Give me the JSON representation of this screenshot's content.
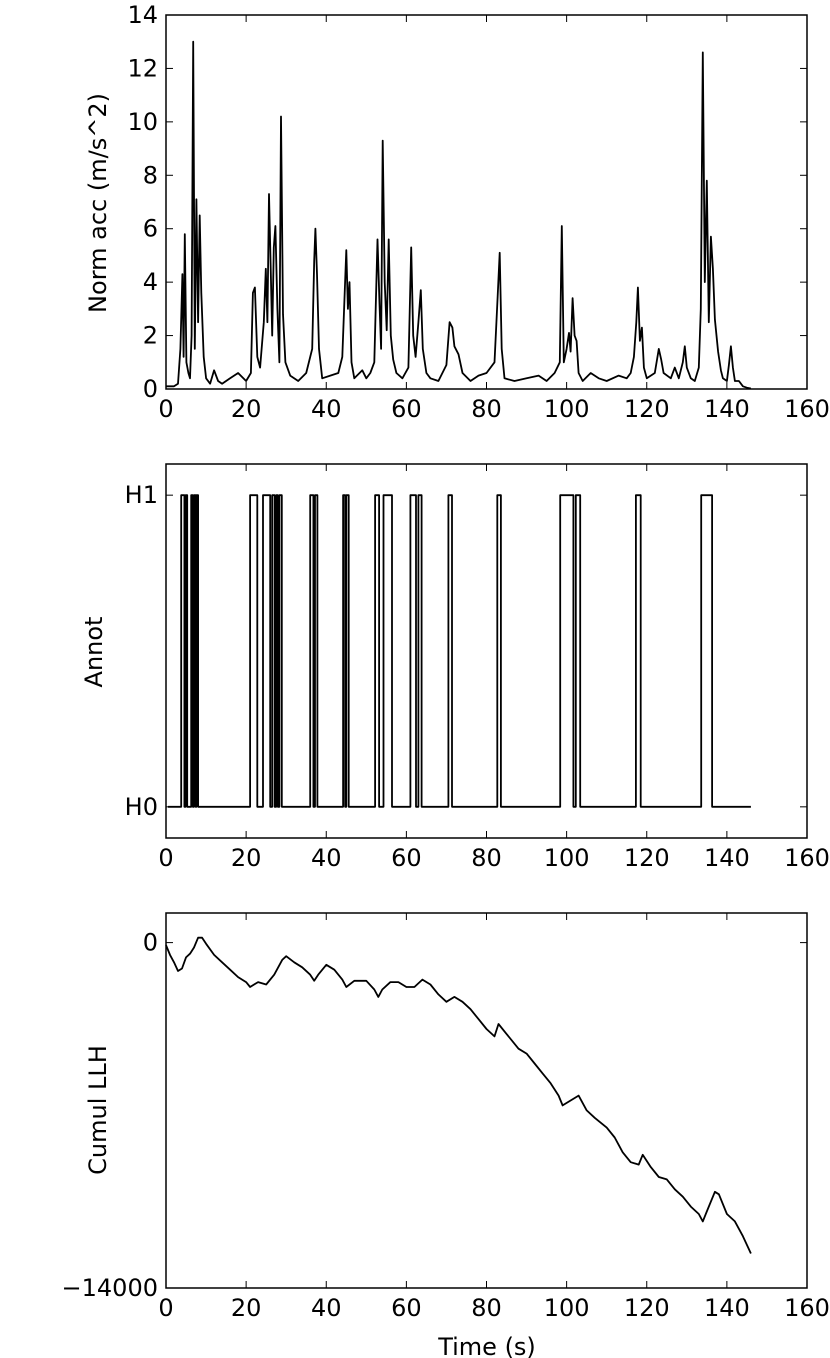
{
  "chart_data": [
    {
      "type": "line",
      "ylabel": "Norm acc (m/s^2)",
      "xlabel": "",
      "xlim": [
        0,
        160
      ],
      "ylim": [
        0,
        14
      ],
      "xticks": [
        0,
        20,
        40,
        60,
        80,
        100,
        120,
        140,
        160
      ],
      "yticks": [
        0,
        2,
        4,
        6,
        8,
        10,
        12,
        14
      ],
      "ytick_labels": [
        "0",
        "2",
        "4",
        "6",
        "8",
        "10",
        "12",
        "14"
      ],
      "color": "#000000",
      "series": [
        {
          "points": [
            [
              0,
              0.1
            ],
            [
              2,
              0.1
            ],
            [
              3,
              0.2
            ],
            [
              3.6,
              1.5
            ],
            [
              4.1,
              4.3
            ],
            [
              4.4,
              1.2
            ],
            [
              4.7,
              5.8
            ],
            [
              5.1,
              1.0
            ],
            [
              5.6,
              0.6
            ],
            [
              6.0,
              0.4
            ],
            [
              6.4,
              2.0
            ],
            [
              6.8,
              13.0
            ],
            [
              7.2,
              1.5
            ],
            [
              7.6,
              7.1
            ],
            [
              8.0,
              2.5
            ],
            [
              8.4,
              6.5
            ],
            [
              8.8,
              3.6
            ],
            [
              9.4,
              1.2
            ],
            [
              10,
              0.4
            ],
            [
              11,
              0.2
            ],
            [
              12,
              0.7
            ],
            [
              13,
              0.3
            ],
            [
              14,
              0.2
            ],
            [
              16,
              0.4
            ],
            [
              18,
              0.6
            ],
            [
              20,
              0.3
            ],
            [
              21.2,
              0.6
            ],
            [
              21.7,
              3.6
            ],
            [
              22.2,
              3.8
            ],
            [
              22.8,
              1.2
            ],
            [
              23.5,
              0.8
            ],
            [
              24.4,
              2.5
            ],
            [
              24.9,
              4.5
            ],
            [
              25.3,
              2.5
            ],
            [
              25.7,
              7.3
            ],
            [
              26.1,
              4.7
            ],
            [
              26.5,
              2.0
            ],
            [
              26.9,
              5.3
            ],
            [
              27.3,
              6.1
            ],
            [
              27.8,
              3.0
            ],
            [
              28.3,
              1.0
            ],
            [
              28.7,
              10.2
            ],
            [
              29.2,
              2.8
            ],
            [
              29.8,
              1.0
            ],
            [
              31,
              0.5
            ],
            [
              33,
              0.3
            ],
            [
              35,
              0.6
            ],
            [
              36.5,
              1.5
            ],
            [
              37.0,
              4.8
            ],
            [
              37.3,
              6.0
            ],
            [
              37.7,
              4.3
            ],
            [
              38.2,
              1.5
            ],
            [
              39,
              0.4
            ],
            [
              41,
              0.5
            ],
            [
              43,
              0.6
            ],
            [
              44,
              1.2
            ],
            [
              44.6,
              3.6
            ],
            [
              45.0,
              5.2
            ],
            [
              45.4,
              3.0
            ],
            [
              45.8,
              4.0
            ],
            [
              46.3,
              1.0
            ],
            [
              47,
              0.4
            ],
            [
              49,
              0.7
            ],
            [
              50,
              0.4
            ],
            [
              51,
              0.6
            ],
            [
              52,
              1.0
            ],
            [
              52.8,
              5.6
            ],
            [
              53.3,
              3.2
            ],
            [
              53.7,
              1.5
            ],
            [
              54.1,
              9.3
            ],
            [
              54.6,
              4.0
            ],
            [
              55.1,
              2.2
            ],
            [
              55.6,
              5.6
            ],
            [
              56.1,
              2.0
            ],
            [
              56.7,
              1.1
            ],
            [
              57.5,
              0.6
            ],
            [
              59,
              0.4
            ],
            [
              60.5,
              0.8
            ],
            [
              61.2,
              5.3
            ],
            [
              61.7,
              2.0
            ],
            [
              62.3,
              1.2
            ],
            [
              63.0,
              2.5
            ],
            [
              63.6,
              3.7
            ],
            [
              64.1,
              1.5
            ],
            [
              65,
              0.6
            ],
            [
              66,
              0.4
            ],
            [
              68,
              0.3
            ],
            [
              70,
              0.9
            ],
            [
              70.8,
              2.5
            ],
            [
              71.5,
              2.3
            ],
            [
              72,
              1.6
            ],
            [
              73,
              1.3
            ],
            [
              74,
              0.6
            ],
            [
              76,
              0.3
            ],
            [
              78,
              0.5
            ],
            [
              80,
              0.6
            ],
            [
              82,
              1.0
            ],
            [
              82.8,
              3.5
            ],
            [
              83.3,
              5.1
            ],
            [
              83.8,
              1.5
            ],
            [
              84.5,
              0.4
            ],
            [
              87,
              0.3
            ],
            [
              90,
              0.4
            ],
            [
              93,
              0.5
            ],
            [
              95,
              0.3
            ],
            [
              97,
              0.6
            ],
            [
              98.3,
              1.0
            ],
            [
              98.8,
              6.1
            ],
            [
              99.3,
              1.0
            ],
            [
              100,
              1.5
            ],
            [
              100.6,
              2.1
            ],
            [
              101.0,
              1.4
            ],
            [
              101.5,
              3.4
            ],
            [
              102,
              2.0
            ],
            [
              102.5,
              1.8
            ],
            [
              103,
              0.6
            ],
            [
              104,
              0.3
            ],
            [
              106,
              0.6
            ],
            [
              108,
              0.4
            ],
            [
              110,
              0.3
            ],
            [
              113,
              0.5
            ],
            [
              115,
              0.4
            ],
            [
              116,
              0.6
            ],
            [
              116.8,
              1.2
            ],
            [
              117.4,
              2.5
            ],
            [
              117.8,
              3.8
            ],
            [
              118.3,
              1.8
            ],
            [
              118.8,
              2.3
            ],
            [
              119.3,
              0.8
            ],
            [
              120,
              0.4
            ],
            [
              122,
              0.6
            ],
            [
              123,
              1.5
            ],
            [
              123.6,
              1.1
            ],
            [
              124.2,
              0.6
            ],
            [
              126,
              0.4
            ],
            [
              127,
              0.8
            ],
            [
              128,
              0.4
            ],
            [
              129,
              1.0
            ],
            [
              129.5,
              1.6
            ],
            [
              130,
              0.8
            ],
            [
              131,
              0.4
            ],
            [
              132,
              0.3
            ],
            [
              133,
              0.8
            ],
            [
              133.5,
              3.0
            ],
            [
              134.0,
              12.6
            ],
            [
              134.5,
              4.0
            ],
            [
              135,
              7.8
            ],
            [
              135.5,
              2.5
            ],
            [
              136,
              5.7
            ],
            [
              136.5,
              4.5
            ],
            [
              137,
              2.6
            ],
            [
              137.8,
              1.4
            ],
            [
              138.5,
              0.7
            ],
            [
              139,
              0.4
            ],
            [
              140,
              0.3
            ],
            [
              140.5,
              0.9
            ],
            [
              141,
              1.6
            ],
            [
              141.5,
              0.8
            ],
            [
              142,
              0.3
            ],
            [
              143,
              0.3
            ],
            [
              144,
              0.1
            ],
            [
              145,
              0.05
            ],
            [
              146,
              0.02
            ]
          ]
        }
      ]
    },
    {
      "type": "line",
      "ylabel": "Annot",
      "xlabel": "",
      "xlim": [
        0,
        160
      ],
      "ylim": [
        -0.1,
        1.1
      ],
      "xticks": [
        0,
        20,
        40,
        60,
        80,
        100,
        120,
        140,
        160
      ],
      "yticks": [
        0,
        1
      ],
      "ytick_labels": [
        "H0",
        "H1"
      ],
      "color": "#000000",
      "intervals_h1": [
        [
          3.8,
          4.6
        ],
        [
          4.9,
          5.3
        ],
        [
          6.3,
          6.7
        ],
        [
          7.0,
          7.4
        ],
        [
          7.6,
          8.0
        ],
        [
          21.0,
          22.8
        ],
        [
          24.2,
          26.0
        ],
        [
          26.5,
          27.1
        ],
        [
          27.5,
          27.9
        ],
        [
          28.3,
          28.9
        ],
        [
          36.0,
          36.8
        ],
        [
          37.2,
          37.8
        ],
        [
          44.2,
          44.7
        ],
        [
          45.0,
          45.6
        ],
        [
          52.2,
          53.2
        ],
        [
          54.3,
          56.4
        ],
        [
          61.0,
          62.4
        ],
        [
          63.0,
          63.8
        ],
        [
          70.5,
          71.4
        ],
        [
          82.7,
          83.6
        ],
        [
          98.4,
          101.7
        ],
        [
          102.3,
          103.4
        ],
        [
          117.3,
          118.5
        ],
        [
          133.6,
          136.3
        ]
      ],
      "x_end": 146
    },
    {
      "type": "line",
      "ylabel": "Cumul LLH",
      "xlabel": "Time (s)",
      "xlim": [
        0,
        160
      ],
      "ylim": [
        -14000,
        1200
      ],
      "xticks": [
        0,
        20,
        40,
        60,
        80,
        100,
        120,
        140,
        160
      ],
      "yticks": [
        0,
        -14000
      ],
      "ytick_labels": [
        "0",
        "−14000"
      ],
      "color": "#000000",
      "series": [
        {
          "points": [
            [
              0,
              -100
            ],
            [
              1,
              -500
            ],
            [
              2,
              -800
            ],
            [
              3,
              -1150
            ],
            [
              4,
              -1050
            ],
            [
              5,
              -600
            ],
            [
              6,
              -450
            ],
            [
              7,
              -200
            ],
            [
              8,
              200
            ],
            [
              9,
              200
            ],
            [
              10,
              -50
            ],
            [
              12,
              -500
            ],
            [
              14,
              -800
            ],
            [
              16,
              -1100
            ],
            [
              18,
              -1400
            ],
            [
              20,
              -1600
            ],
            [
              21,
              -1800
            ],
            [
              22,
              -1700
            ],
            [
              23,
              -1600
            ],
            [
              25,
              -1700
            ],
            [
              27,
              -1300
            ],
            [
              29,
              -700
            ],
            [
              30,
              -550
            ],
            [
              32,
              -800
            ],
            [
              34,
              -1000
            ],
            [
              36,
              -1300
            ],
            [
              37,
              -1550
            ],
            [
              38,
              -1300
            ],
            [
              40,
              -900
            ],
            [
              42,
              -1100
            ],
            [
              44,
              -1500
            ],
            [
              45,
              -1800
            ],
            [
              47,
              -1550
            ],
            [
              50,
              -1550
            ],
            [
              52,
              -1900
            ],
            [
              53,
              -2200
            ],
            [
              54,
              -1900
            ],
            [
              56,
              -1600
            ],
            [
              58,
              -1600
            ],
            [
              60,
              -1800
            ],
            [
              62,
              -1800
            ],
            [
              64,
              -1500
            ],
            [
              66,
              -1700
            ],
            [
              68,
              -2100
            ],
            [
              70,
              -2400
            ],
            [
              72,
              -2200
            ],
            [
              74,
              -2400
            ],
            [
              76,
              -2700
            ],
            [
              78,
              -3100
            ],
            [
              80,
              -3500
            ],
            [
              82,
              -3800
            ],
            [
              83,
              -3300
            ],
            [
              85,
              -3700
            ],
            [
              88,
              -4300
            ],
            [
              90,
              -4500
            ],
            [
              92,
              -4900
            ],
            [
              94,
              -5300
            ],
            [
              96,
              -5700
            ],
            [
              98,
              -6200
            ],
            [
              99,
              -6600
            ],
            [
              101,
              -6400
            ],
            [
              103,
              -6200
            ],
            [
              105,
              -6800
            ],
            [
              107,
              -7100
            ],
            [
              110,
              -7500
            ],
            [
              112,
              -7900
            ],
            [
              114,
              -8500
            ],
            [
              116,
              -8900
            ],
            [
              118,
              -9000
            ],
            [
              119,
              -8600
            ],
            [
              121,
              -9100
            ],
            [
              123,
              -9500
            ],
            [
              125,
              -9600
            ],
            [
              127,
              -10000
            ],
            [
              129,
              -10300
            ],
            [
              131,
              -10700
            ],
            [
              133,
              -11000
            ],
            [
              134,
              -11300
            ],
            [
              135,
              -10900
            ],
            [
              137,
              -10100
            ],
            [
              138,
              -10200
            ],
            [
              140,
              -11000
            ],
            [
              142,
              -11300
            ],
            [
              144,
              -11900
            ],
            [
              146,
              -12600
            ]
          ]
        }
      ]
    }
  ]
}
